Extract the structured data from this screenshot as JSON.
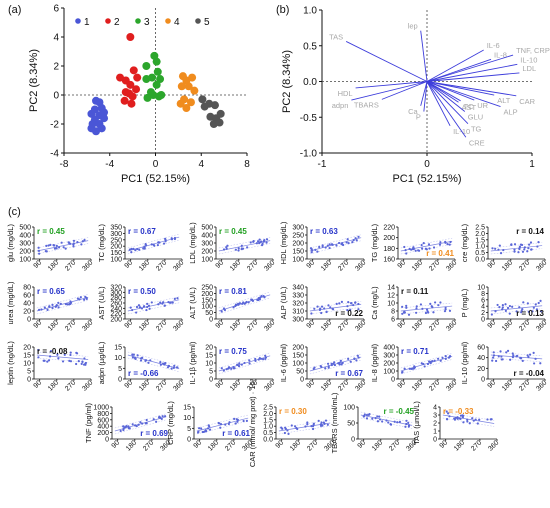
{
  "panels": {
    "a": "(a)",
    "b": "(b)",
    "c": "(c)"
  },
  "chart_data": [
    {
      "id": "a",
      "type": "scatter",
      "xlabel": "PC1 (52.15%)",
      "ylabel": "PC2 (8.34%)",
      "xlim": [
        -8,
        8
      ],
      "ylim": [
        -4,
        6
      ],
      "xticks": [
        -8,
        -4,
        0,
        4,
        8
      ],
      "yticks": [
        -4,
        -2,
        0,
        2,
        4,
        6
      ],
      "legend": "top-left",
      "series": [
        {
          "name": "1",
          "color": "#4a56d6",
          "points": [
            [
              -5.2,
              -0.4
            ],
            [
              -4.9,
              -0.5
            ],
            [
              -5.3,
              -1.0
            ],
            [
              -4.7,
              -0.9
            ],
            [
              -5.6,
              -1.3
            ],
            [
              -4.9,
              -1.4
            ],
            [
              -5.3,
              -1.7
            ],
            [
              -4.5,
              -1.6
            ],
            [
              -5.5,
              -2.0
            ],
            [
              -4.9,
              -2.0
            ],
            [
              -5.6,
              -2.3
            ],
            [
              -5.2,
              -2.5
            ],
            [
              -4.7,
              -2.3
            ],
            [
              -4.5,
              -1.2
            ]
          ]
        },
        {
          "name": "2",
          "color": "#e01e1e",
          "points": [
            [
              -2.2,
              4.0
            ],
            [
              -3.1,
              1.2
            ],
            [
              -2.6,
              1.0
            ],
            [
              -1.9,
              1.7
            ],
            [
              -1.6,
              1.2
            ],
            [
              -2.2,
              0.7
            ],
            [
              -2.6,
              0.2
            ],
            [
              -2.0,
              -0.1
            ],
            [
              -2.7,
              -0.4
            ],
            [
              -2.1,
              -0.6
            ],
            [
              -1.7,
              0.4
            ],
            [
              -2.3,
              0.1
            ]
          ]
        },
        {
          "name": "3",
          "color": "#2ca62c",
          "points": [
            [
              -0.1,
              2.7
            ],
            [
              0.1,
              2.3
            ],
            [
              -0.8,
              2.0
            ],
            [
              0.2,
              1.6
            ],
            [
              -0.3,
              1.2
            ],
            [
              0.4,
              1.1
            ],
            [
              -0.8,
              1.1
            ],
            [
              0.1,
              0.7
            ],
            [
              -0.4,
              0.2
            ],
            [
              0.5,
              0.0
            ],
            [
              -0.2,
              0.0
            ],
            [
              -0.7,
              -0.2
            ],
            [
              0.3,
              -0.1
            ]
          ]
        },
        {
          "name": "4",
          "color": "#f08c1e",
          "points": [
            [
              2.4,
              1.3
            ],
            [
              2.7,
              1.0
            ],
            [
              3.2,
              1.2
            ],
            [
              2.3,
              0.6
            ],
            [
              2.9,
              0.6
            ],
            [
              3.4,
              0.3
            ],
            [
              2.5,
              -0.3
            ],
            [
              3.1,
              -0.5
            ],
            [
              2.7,
              -0.9
            ],
            [
              2.2,
              -0.6
            ]
          ]
        },
        {
          "name": "5",
          "color": "#555555",
          "points": [
            [
              4.1,
              -0.3
            ],
            [
              4.7,
              -0.6
            ],
            [
              4.3,
              -0.8
            ],
            [
              5.2,
              -0.7
            ],
            [
              4.8,
              -1.5
            ],
            [
              5.3,
              -1.6
            ],
            [
              5.7,
              -1.3
            ],
            [
              5.1,
              -2.0
            ],
            [
              5.6,
              -1.9
            ]
          ]
        }
      ]
    },
    {
      "id": "b",
      "type": "biplot",
      "xlabel": "PC1 (52.15%)",
      "ylabel": "PC2 (8.34%)",
      "xlim": [
        -1,
        1
      ],
      "ylim": [
        -1,
        1
      ],
      "xticks": [
        -1,
        0,
        1
      ],
      "yticks": [
        -1.0,
        -0.5,
        0.0,
        0.5,
        1.0
      ],
      "vector_color": "#3d3ddb",
      "loadings": [
        {
          "label": "TAS",
          "x": -0.77,
          "y": 0.56
        },
        {
          "label": "lep",
          "x": -0.06,
          "y": 0.71
        },
        {
          "label": "IL-6",
          "x": 0.54,
          "y": 0.44
        },
        {
          "label": "IL-8",
          "x": 0.61,
          "y": 0.31
        },
        {
          "label": "TNF, CRP",
          "x": 0.82,
          "y": 0.37
        },
        {
          "label": "IL-10",
          "x": 0.86,
          "y": 0.24
        },
        {
          "label": "LDL",
          "x": 0.88,
          "y": 0.12
        },
        {
          "label": "HDL",
          "x": -0.68,
          "y": -0.09
        },
        {
          "label": "adpn",
          "x": -0.72,
          "y": -0.26
        },
        {
          "label": "TBARS",
          "x": -0.43,
          "y": -0.25
        },
        {
          "label": "Ca",
          "x": -0.06,
          "y": -0.34
        },
        {
          "label": "P",
          "x": -0.03,
          "y": -0.42
        },
        {
          "label": "TC",
          "x": 0.32,
          "y": -0.27
        },
        {
          "label": "ALT",
          "x": 0.64,
          "y": -0.19
        },
        {
          "label": "UR",
          "x": 0.45,
          "y": -0.26
        },
        {
          "label": "CAR",
          "x": 0.85,
          "y": -0.2
        },
        {
          "label": "AST",
          "x": 0.3,
          "y": -0.29
        },
        {
          "label": "ALP",
          "x": 0.7,
          "y": -0.35
        },
        {
          "label": "GLU",
          "x": 0.36,
          "y": -0.42
        },
        {
          "label": "TG",
          "x": 0.39,
          "y": -0.59
        },
        {
          "label": "IL-10",
          "x": 0.22,
          "y": -0.62
        },
        {
          "label": "CRE",
          "x": 0.37,
          "y": -0.78
        }
      ]
    },
    {
      "id": "c",
      "type": "scatter-grid",
      "xlim": [
        60,
        360
      ],
      "xticks": [
        90,
        180,
        270,
        360
      ],
      "point_color": "#5a66d8",
      "subplots": [
        {
          "ylabel": "glu (mg/dL)",
          "ylim": [
            100,
            500
          ],
          "yticks": [
            100,
            200,
            300,
            400,
            500
          ],
          "r": "r = 0.45",
          "r_color": "#22a022",
          "r_pos": "top-left"
        },
        {
          "ylabel": "TC (mg/dL)",
          "ylim": [
            100,
            350
          ],
          "yticks": [
            100,
            150,
            200,
            250,
            300,
            350
          ],
          "r": "r = 0.67",
          "r_color": "#2633c9",
          "r_pos": "top-left"
        },
        {
          "ylabel": "LDL (mg/dL)",
          "ylim": [
            100,
            500
          ],
          "yticks": [
            100,
            200,
            300,
            400,
            500
          ],
          "r": "r = 0.45",
          "r_color": "#22a022",
          "r_pos": "top-left"
        },
        {
          "ylabel": "HDL (mg/dL)",
          "ylim": [
            100,
            300
          ],
          "yticks": [
            100,
            150,
            200,
            250,
            300
          ],
          "r": "r = 0.63",
          "r_color": "#2633c9",
          "r_pos": "top-left"
        },
        {
          "ylabel": "TG (mg/dL)",
          "ylim": [
            160,
            220
          ],
          "yticks": [
            160,
            180,
            200,
            220
          ],
          "r": "r = 0.41",
          "r_color": "#f08c1e",
          "r_pos": "bottom-right"
        },
        {
          "ylabel": "cre (mg/dL)",
          "ylim": [
            0.0,
            2.5
          ],
          "yticks": [
            0.0,
            0.5,
            1.0,
            1.5,
            2.0,
            2.5
          ],
          "r": "r = 0.14",
          "r_color": "#111111",
          "r_pos": "top-right"
        },
        {
          "ylabel": "urea (mg/dL)",
          "ylim": [
            0,
            80
          ],
          "yticks": [
            0,
            20,
            40,
            60,
            80
          ],
          "r": "r = 0.65",
          "r_color": "#2633c9",
          "r_pos": "top-left"
        },
        {
          "ylabel": "AST (U/L)",
          "ylim": [
            200,
            320
          ],
          "yticks": [
            200,
            220,
            240,
            260,
            280,
            300,
            320
          ],
          "r": "r = 0.50",
          "r_color": "#2633c9",
          "r_pos": "top-left"
        },
        {
          "ylabel": "ALT (U/L)",
          "ylim": [
            0,
            250
          ],
          "yticks": [
            0,
            50,
            100,
            150,
            200,
            250
          ],
          "r": "r = 0.81",
          "r_color": "#2633c9",
          "r_pos": "top-left"
        },
        {
          "ylabel": "ALP (U/L)",
          "ylim": [
            300,
            340
          ],
          "yticks": [
            300,
            310,
            320,
            330,
            340
          ],
          "r": "r = 0.22",
          "r_color": "#111111",
          "r_pos": "bottom-right"
        },
        {
          "ylabel": "Ca (mg/L)",
          "ylim": [
            6,
            14
          ],
          "yticks": [
            6,
            8,
            10,
            12,
            14
          ],
          "r": "r = 0.11",
          "r_color": "#111111",
          "r_pos": "top-left"
        },
        {
          "ylabel": "P (mg/L)",
          "ylim": [
            0,
            10
          ],
          "yticks": [
            0,
            2,
            4,
            6,
            8,
            10
          ],
          "r": "r = 0.13",
          "r_color": "#111111",
          "r_pos": "bottom-right"
        },
        {
          "ylabel": "leptin (ng/dL)",
          "ylim": [
            0,
            20
          ],
          "yticks": [
            0,
            5,
            10,
            15,
            20
          ],
          "r": "r = -0.08",
          "r_color": "#111111",
          "r_pos": "top-left"
        },
        {
          "ylabel": "adpn (µg/dL)",
          "ylim": [
            0,
            15
          ],
          "yticks": [
            0,
            5,
            10,
            15
          ],
          "r": "r = -0.66",
          "r_color": "#2633c9",
          "r_pos": "bottom-left"
        },
        {
          "ylabel": "IL-1β (pg/ml)",
          "ylim": [
            0,
            20
          ],
          "yticks": [
            0,
            5,
            10,
            15,
            20
          ],
          "r": "r = 0.75",
          "r_color": "#2633c9",
          "r_pos": "top-left"
        },
        {
          "ylabel": "IL-6 (pg/ml)",
          "ylim": [
            0,
            200
          ],
          "yticks": [
            0,
            50,
            100,
            150,
            200
          ],
          "r": "r = 0.67",
          "r_color": "#2633c9",
          "r_pos": "bottom-right"
        },
        {
          "ylabel": "IL-8 (pg/ml)",
          "ylim": [
            0,
            400
          ],
          "yticks": [
            0,
            100,
            200,
            300,
            400
          ],
          "r": "r = 0.71",
          "r_color": "#2633c9",
          "r_pos": "top-left"
        },
        {
          "ylabel": "IL-10 (pg/ml)",
          "ylim": [
            0,
            60
          ],
          "yticks": [
            0,
            20,
            40,
            60
          ],
          "r": "r = -0.04",
          "r_color": "#111111",
          "r_pos": "bottom-right"
        },
        {
          "ylabel": "TNF (pg/ml)",
          "ylim": [
            0,
            1000
          ],
          "yticks": [
            0,
            200,
            400,
            600,
            800,
            1000
          ],
          "r": "r = 0.69",
          "r_color": "#2633c9",
          "r_pos": "bottom-right"
        },
        {
          "ylabel": "CRP (mg/dL)",
          "ylim": [
            0,
            15
          ],
          "yticks": [
            0,
            5,
            10,
            15
          ],
          "r": "r = 0.61",
          "r_color": "#2633c9",
          "r_pos": "bottom-right"
        },
        {
          "ylabel": "CAR (mmol/ mg prot) · 10³",
          "ylim": [
            0,
            2.5
          ],
          "yticks": [
            0.0,
            0.5,
            1.0,
            1.5,
            2.0,
            2.5
          ],
          "r": "r = 0.30",
          "r_color": "#f08c1e",
          "r_pos": "top-left"
        },
        {
          "ylabel": "TBARS (nmol/mL)",
          "ylim": [
            0,
            100
          ],
          "yticks": [
            0,
            50,
            100
          ],
          "r": "r = -0.45",
          "r_color": "#22a022",
          "r_pos": "top-right"
        },
        {
          "ylabel": "TAS (µmol/L)",
          "ylim": [
            0,
            4
          ],
          "yticks": [
            0,
            1,
            2,
            3,
            4
          ],
          "r": "r = -0.33",
          "r_color": "#f08c1e",
          "r_pos": "top-left"
        }
      ]
    }
  ]
}
